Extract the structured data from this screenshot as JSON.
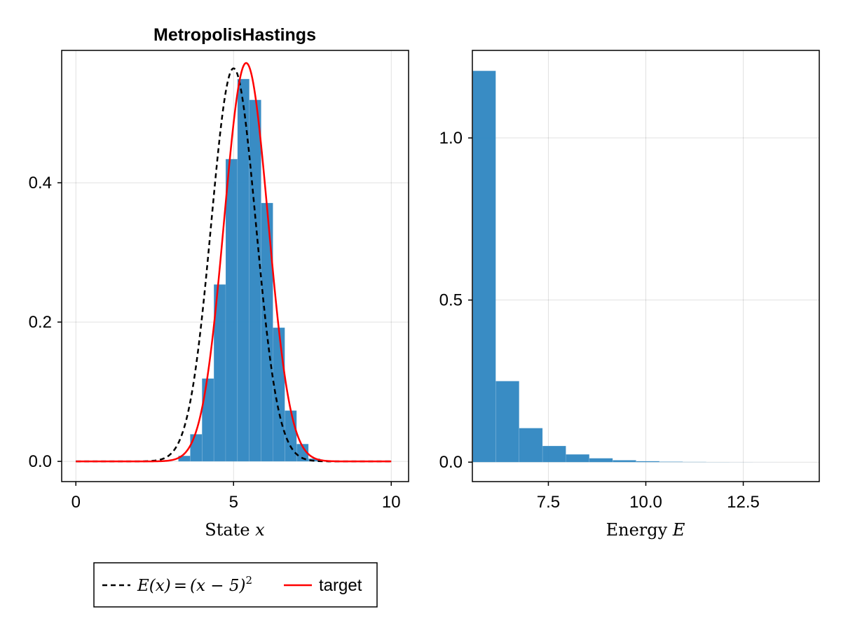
{
  "chart_data": [
    {
      "type": "histogram",
      "title": "MetropolisHastings",
      "xlabel": "State",
      "xlabel_var": "x",
      "ylabel": "",
      "xlim": [
        -0.45,
        10.55
      ],
      "ylim": [
        -0.029,
        0.59
      ],
      "xticks": [
        0,
        5,
        10
      ],
      "xtick_labels": [
        "0",
        "5",
        "10"
      ],
      "yticks": [
        0.0,
        0.2,
        0.4
      ],
      "ytick_labels": [
        "0.0",
        "0.2",
        "0.4"
      ],
      "grid": true,
      "bar_color": "#2E86C1",
      "bins": [
        {
          "x0": 3.25,
          "x1": 3.625,
          "h": 0.008
        },
        {
          "x0": 3.625,
          "x1": 4.0,
          "h": 0.039
        },
        {
          "x0": 4.0,
          "x1": 4.375,
          "h": 0.119
        },
        {
          "x0": 4.375,
          "x1": 4.75,
          "h": 0.254
        },
        {
          "x0": 4.75,
          "x1": 5.125,
          "h": 0.434
        },
        {
          "x0": 5.125,
          "x1": 5.5,
          "h": 0.549
        },
        {
          "x0": 5.5,
          "x1": 5.875,
          "h": 0.519
        },
        {
          "x0": 5.875,
          "x1": 6.25,
          "h": 0.371
        },
        {
          "x0": 6.25,
          "x1": 6.625,
          "h": 0.192
        },
        {
          "x0": 6.625,
          "x1": 7.0,
          "h": 0.073
        },
        {
          "x0": 7.0,
          "x1": 7.375,
          "h": 0.025
        },
        {
          "x0": 7.375,
          "x1": 7.75,
          "h": 0.004
        }
      ],
      "series": [
        {
          "name": "E(x) = (x − 5)²",
          "style": "dashed",
          "color": "#000000",
          "mean": 5.0,
          "sigma": 0.7071,
          "x_range": [
            0,
            10
          ]
        },
        {
          "name": "target",
          "style": "solid",
          "color": "#ff0000",
          "mean": 5.4,
          "sigma": 0.6975,
          "x_range": [
            0,
            10
          ]
        }
      ]
    },
    {
      "type": "histogram",
      "title": "",
      "xlabel": "Energy",
      "xlabel_var": "E",
      "ylabel": "",
      "xlim": [
        5.55,
        14.45
      ],
      "ylim": [
        -0.06,
        1.27
      ],
      "xticks": [
        7.5,
        10.0,
        12.5
      ],
      "xtick_labels": [
        "7.5",
        "10.0",
        "12.5"
      ],
      "yticks": [
        0.0,
        0.5,
        1.0
      ],
      "ytick_labels": [
        "0.0",
        "0.5",
        "1.0"
      ],
      "grid": true,
      "bar_color": "#2E86C1",
      "bins": [
        {
          "x0": 5.55,
          "x1": 6.15,
          "h": 1.207
        },
        {
          "x0": 6.15,
          "x1": 6.75,
          "h": 0.25
        },
        {
          "x0": 6.75,
          "x1": 7.35,
          "h": 0.105
        },
        {
          "x0": 7.35,
          "x1": 7.95,
          "h": 0.05
        },
        {
          "x0": 7.95,
          "x1": 8.55,
          "h": 0.024
        },
        {
          "x0": 8.55,
          "x1": 9.15,
          "h": 0.012
        },
        {
          "x0": 9.15,
          "x1": 9.75,
          "h": 0.006
        },
        {
          "x0": 9.75,
          "x1": 10.35,
          "h": 0.003
        },
        {
          "x0": 10.35,
          "x1": 10.95,
          "h": 0.0015
        },
        {
          "x0": 10.95,
          "x1": 11.55,
          "h": 0.0008
        },
        {
          "x0": 11.55,
          "x1": 12.15,
          "h": 0.0004
        },
        {
          "x0": 12.15,
          "x1": 12.75,
          "h": 0.0002
        },
        {
          "x0": 12.75,
          "x1": 13.35,
          "h": 0.0001
        }
      ]
    }
  ],
  "legend": {
    "placement": "bottom-left",
    "entries": [
      {
        "label_lhs": "E(x)",
        "label_rhs": "(x − 5)",
        "superscript": "2",
        "style": "dashed",
        "color": "#000000"
      },
      {
        "label": "target",
        "style": "solid",
        "color": "#ff0000"
      }
    ]
  }
}
